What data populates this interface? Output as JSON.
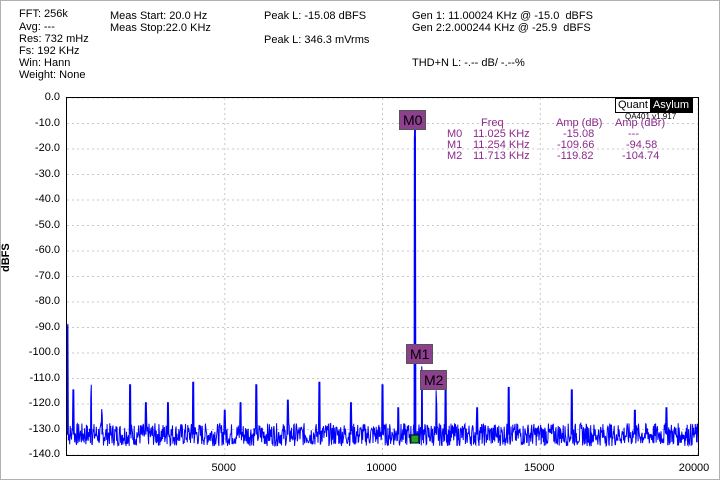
{
  "header": {
    "col1": [
      "FFT: 256k",
      "Avg: ---",
      "Res: 732 mHz",
      "Fs: 192 KHz",
      "Win: Hann",
      "Weight: None"
    ],
    "col2": [
      "Meas Start: 20.0 Hz",
      "Meas Stop:22.0 KHz"
    ],
    "peak_dbfs": "Peak L: -15.08 dBFS",
    "peak_vrms": "Peak L: 346.3 mVrms",
    "gen1": "Gen 1: 11.00024 KHz @ -15.0  dBFS",
    "gen2": "Gen 2:2.000244 KHz @ -25.9  dBFS",
    "thd": "THD+N L: -.-- dB/ -.--%"
  },
  "logo": {
    "left": "Quant",
    "right": "Asylum",
    "version": "QA401 v1.917"
  },
  "marker_table": {
    "headers": [
      "Freq",
      "Amp (dB)",
      "Amp (dBr)"
    ],
    "rows": [
      {
        "name": "M0",
        "freq": "11.025 KHz",
        "amp_db": "-15.08",
        "amp_dbr": "---"
      },
      {
        "name": "M1",
        "freq": "11.254 KHz",
        "amp_db": "-109.66",
        "amp_dbr": "-94.58"
      },
      {
        "name": "M2",
        "freq": "11.713 KHz",
        "amp_db": "-119.82",
        "amp_dbr": "-104.74"
      }
    ]
  },
  "markers": [
    {
      "name": "M0",
      "freq": 11025,
      "amp": -15.08
    },
    {
      "name": "M1",
      "freq": 11254,
      "amp": -109.66
    },
    {
      "name": "M2",
      "freq": 11713,
      "amp": -119.82
    }
  ],
  "colors": {
    "trace": "#0000ff",
    "marker": "#8e3f8e",
    "grid": "#c8c8c8"
  },
  "chart_data": {
    "type": "line",
    "title": "",
    "xlabel": "",
    "ylabel": "dBFS",
    "xlim": [
      0,
      20000
    ],
    "ylim": [
      -140,
      0
    ],
    "x_ticks": [
      "5000",
      "10000",
      "15000",
      "20000"
    ],
    "y_ticks": [
      "0.0",
      "-10.0",
      "-20.0",
      "-30.0",
      "-40.0",
      "-50.0",
      "-60.0",
      "-70.0",
      "-80.0",
      "-90.0",
      "-100.0",
      "-110.0",
      "-120.0",
      "-130.0",
      "-140.0"
    ],
    "grid": true,
    "series": [
      {
        "noise_floor_db": -132,
        "points": [
          {
            "x": 20,
            "y": -92
          },
          {
            "x": 200,
            "y": -120
          },
          {
            "x": 760,
            "y": -117
          },
          {
            "x": 1110,
            "y": -126
          },
          {
            "x": 2000,
            "y": -118
          },
          {
            "x": 2500,
            "y": -125
          },
          {
            "x": 3200,
            "y": -125
          },
          {
            "x": 4000,
            "y": -117
          },
          {
            "x": 5000,
            "y": -128
          },
          {
            "x": 5500,
            "y": -125
          },
          {
            "x": 6000,
            "y": -118
          },
          {
            "x": 7000,
            "y": -124
          },
          {
            "x": 8000,
            "y": -117
          },
          {
            "x": 9000,
            "y": -125
          },
          {
            "x": 10000,
            "y": -118
          },
          {
            "x": 10500,
            "y": -127
          },
          {
            "x": 11025,
            "y": -15.08
          },
          {
            "x": 11254,
            "y": -109.66
          },
          {
            "x": 11713,
            "y": -119.82
          },
          {
            "x": 12000,
            "y": -118
          },
          {
            "x": 13000,
            "y": -127
          },
          {
            "x": 14000,
            "y": -119
          },
          {
            "x": 16000,
            "y": -120
          },
          {
            "x": 18000,
            "y": -128
          },
          {
            "x": 19000,
            "y": -127
          },
          {
            "x": 20000,
            "y": -135
          }
        ]
      }
    ]
  }
}
